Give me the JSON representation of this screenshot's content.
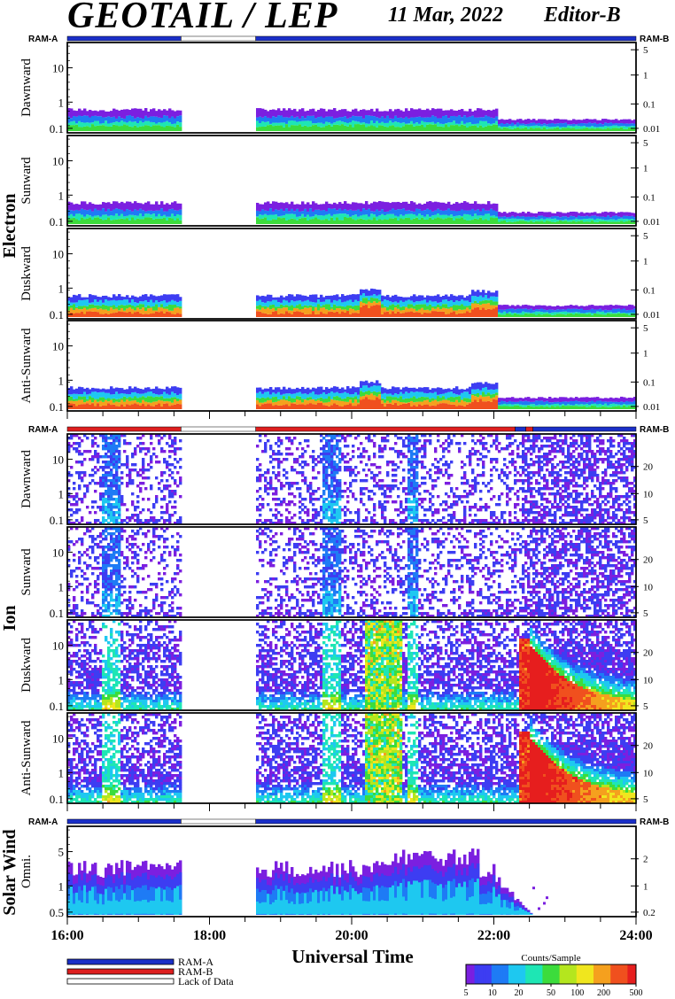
{
  "header": {
    "title": "GEOTAIL / LEP",
    "date": "11 Mar, 2022",
    "editor": "Editor-B"
  },
  "ram_labels": {
    "a": "RAM-A",
    "b": "RAM-B"
  },
  "colors": {
    "ram_a": "#1a2fc8",
    "ram_b": "#dd1e1e",
    "lack": "#ffffff"
  },
  "legend": {
    "items": [
      {
        "label": "RAM-A",
        "color": "#1a2fc8"
      },
      {
        "label": "RAM-B",
        "color": "#dd1e1e"
      },
      {
        "label": "Lack of Data",
        "color": "#ffffff"
      }
    ],
    "colorbar_title": "Counts/Sample",
    "colorbar_ticks": [
      "5",
      "10",
      "20",
      "50",
      "100",
      "200",
      "500"
    ]
  },
  "chart_data": {
    "type": "heatmap",
    "xlabel": "Universal Time",
    "x_range": [
      16,
      24
    ],
    "x_tick_labels": [
      "16:00",
      "18:00",
      "20:00",
      "22:00",
      "24:00"
    ],
    "data_gap_hours": [
      17.6,
      18.65
    ],
    "groups": [
      {
        "name": "Electron",
        "ram_bar": [
          {
            "from": 16,
            "to": 17.6,
            "mode": "ram_a"
          },
          {
            "from": 17.6,
            "to": 18.65,
            "mode": "lack"
          },
          {
            "from": 18.65,
            "to": 24,
            "mode": "ram_a"
          }
        ],
        "panels": [
          {
            "label": "Dawnward",
            "left_ticks": [
              "10",
              "1",
              "0.1"
            ],
            "right_ticks": [
              "5",
              "1",
              "0.1",
              "0.01"
            ],
            "profile": "electron_quiet"
          },
          {
            "label": "Sunward",
            "left_ticks": [
              "10",
              "1",
              "0.1"
            ],
            "right_ticks": [
              "5",
              "1",
              "0.1",
              "0.01"
            ],
            "profile": "electron_quiet"
          },
          {
            "label": "Duskward",
            "left_ticks": [
              "10",
              "1",
              "0.1"
            ],
            "right_ticks": [
              "5",
              "1",
              "0.1",
              "0.01"
            ],
            "profile": "electron_hot"
          },
          {
            "label": "Anti-Sunward",
            "left_ticks": [
              "10",
              "1",
              "0.1"
            ],
            "right_ticks": [
              "5",
              "1",
              "0.1",
              "0.01"
            ],
            "profile": "electron_hot"
          }
        ]
      },
      {
        "name": "Ion",
        "ram_bar": [
          {
            "from": 16,
            "to": 17.6,
            "mode": "ram_b"
          },
          {
            "from": 17.6,
            "to": 18.65,
            "mode": "lack"
          },
          {
            "from": 18.65,
            "to": 22.3,
            "mode": "ram_b"
          },
          {
            "from": 22.3,
            "to": 22.45,
            "mode": "ram_a"
          },
          {
            "from": 22.45,
            "to": 22.55,
            "mode": "ram_b"
          },
          {
            "from": 22.55,
            "to": 24,
            "mode": "ram_a"
          }
        ],
        "panels": [
          {
            "label": "Dawnward",
            "left_ticks": [
              "10",
              "1",
              "0.1"
            ],
            "right_ticks": [
              "20",
              "10",
              "5"
            ],
            "profile": "ion_sparse"
          },
          {
            "label": "Sunward",
            "left_ticks": [
              "10",
              "1",
              "0.1"
            ],
            "right_ticks": [
              "20",
              "10",
              "5"
            ],
            "profile": "ion_sparse"
          },
          {
            "label": "Duskward",
            "left_ticks": [
              "10",
              "1",
              "0.1"
            ],
            "right_ticks": [
              "20",
              "10",
              "5"
            ],
            "profile": "ion_dense"
          },
          {
            "label": "Anti-Sunward",
            "left_ticks": [
              "10",
              "1",
              "0.1"
            ],
            "right_ticks": [
              "20",
              "10",
              "5"
            ],
            "profile": "ion_dense"
          }
        ]
      },
      {
        "name": "Solar Wind",
        "ram_bar": [
          {
            "from": 16,
            "to": 17.6,
            "mode": "ram_a"
          },
          {
            "from": 17.6,
            "to": 18.65,
            "mode": "lack"
          },
          {
            "from": 18.65,
            "to": 24,
            "mode": "ram_a"
          }
        ],
        "panels": [
          {
            "label": "Omni.",
            "left_ticks": [
              "5",
              "1",
              "0.5"
            ],
            "right_ticks": [
              "2",
              "1",
              "0.2"
            ],
            "profile": "solar_wind"
          }
        ]
      }
    ]
  }
}
